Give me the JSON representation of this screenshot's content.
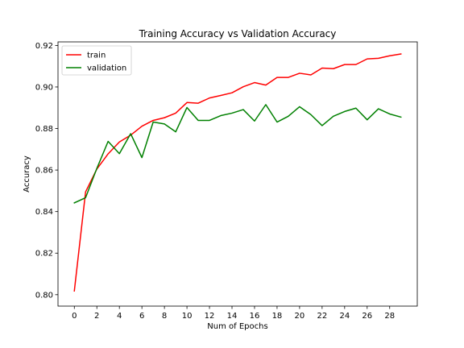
{
  "chart_data": {
    "type": "line",
    "title": "Training Accuracy vs Validation Accuracy",
    "xlabel": "Num of Epochs",
    "ylabel": "Accuracy",
    "xlim": [
      -1.45,
      30.45
    ],
    "ylim": [
      0.7945,
      0.9217
    ],
    "xticks": [
      0,
      2,
      4,
      6,
      8,
      10,
      12,
      14,
      16,
      18,
      20,
      22,
      24,
      26,
      28
    ],
    "yticks": [
      0.8,
      0.82,
      0.84,
      0.86,
      0.88,
      0.9,
      0.92
    ],
    "ytick_labels": [
      "0.80",
      "0.82",
      "0.84",
      "0.86",
      "0.88",
      "0.90",
      "0.92"
    ],
    "grid": false,
    "legend_position": "upper-left",
    "x": [
      0,
      1,
      2,
      3,
      4,
      5,
      6,
      7,
      8,
      9,
      10,
      11,
      12,
      13,
      14,
      15,
      16,
      17,
      18,
      19,
      20,
      21,
      22,
      23,
      24,
      25,
      26,
      27,
      28,
      29
    ],
    "series": [
      {
        "name": "train",
        "color": "#ff0000",
        "values": [
          0.8018,
          0.8495,
          0.8605,
          0.8678,
          0.8735,
          0.8768,
          0.8811,
          0.8839,
          0.8852,
          0.8874,
          0.8925,
          0.8922,
          0.8947,
          0.8959,
          0.8972,
          0.9001,
          0.9021,
          0.9009,
          0.9046,
          0.9046,
          0.9066,
          0.9058,
          0.9091,
          0.9088,
          0.9108,
          0.9108,
          0.9135,
          0.9138,
          0.915,
          0.9159
        ]
      },
      {
        "name": "validation",
        "color": "#008000",
        "values": [
          0.8442,
          0.8467,
          0.8608,
          0.8738,
          0.8679,
          0.8775,
          0.866,
          0.8831,
          0.8822,
          0.8784,
          0.8901,
          0.8839,
          0.8839,
          0.8862,
          0.8874,
          0.8891,
          0.8836,
          0.8915,
          0.8831,
          0.8859,
          0.8905,
          0.8867,
          0.8814,
          0.8859,
          0.8882,
          0.8898,
          0.8842,
          0.8895,
          0.887,
          0.8855
        ]
      }
    ]
  }
}
